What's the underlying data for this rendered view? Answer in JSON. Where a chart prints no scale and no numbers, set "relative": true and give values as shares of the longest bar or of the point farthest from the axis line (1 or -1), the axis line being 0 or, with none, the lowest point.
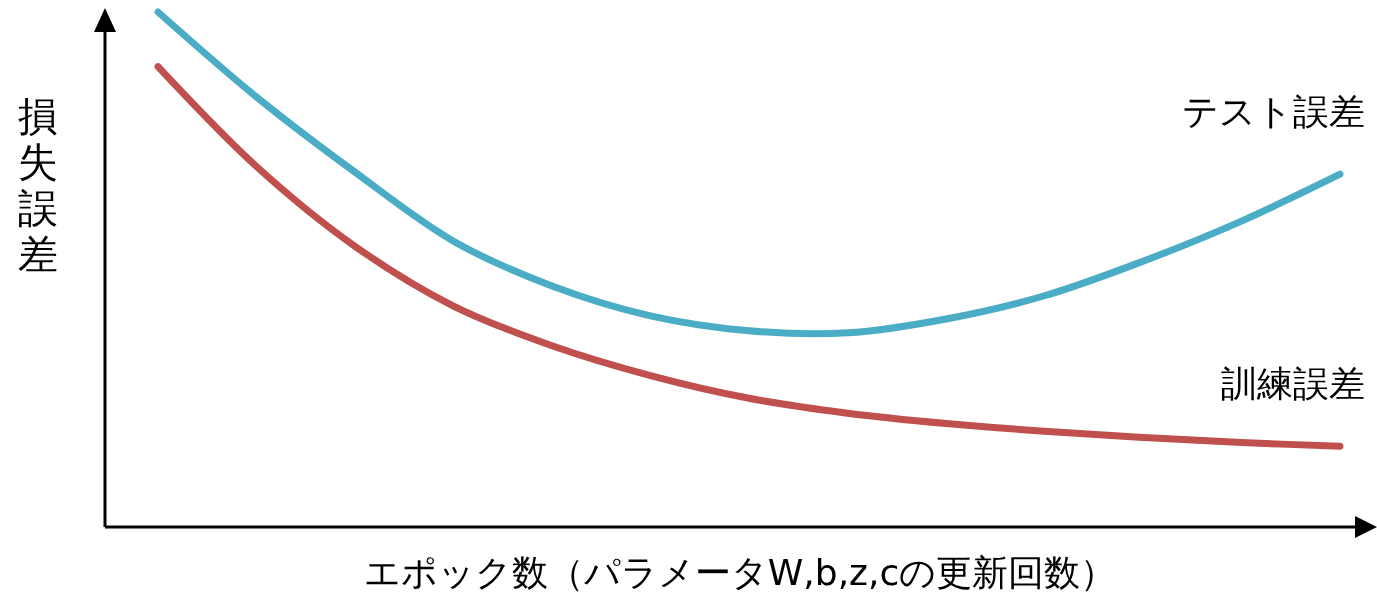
{
  "chart_data": {
    "type": "line",
    "relative": true,
    "xlabel": "エポック数（パラメータW,b,z,cの更新回数）",
    "ylabel": "損失誤差",
    "categories": [
      null,
      null,
      null,
      null,
      null,
      null,
      null,
      null,
      null,
      null,
      null,
      null,
      null
    ],
    "marker": "none",
    "line_style": "solid",
    "legend": false,
    "series": [
      {
        "name": "テスト誤差",
        "color": "#4bacc6",
        "values": [
          1.0,
          0.835,
          0.689,
          0.555,
          0.468,
          0.41,
          0.381,
          0.377,
          0.404,
          0.449,
          0.516,
          0.594,
          0.685
        ]
      },
      {
        "name": "訓練誤差",
        "color": "#c0504d",
        "values": [
          0.894,
          0.7,
          0.545,
          0.429,
          0.352,
          0.294,
          0.25,
          0.221,
          0.201,
          0.186,
          0.174,
          0.164,
          0.157
        ]
      }
    ]
  }
}
